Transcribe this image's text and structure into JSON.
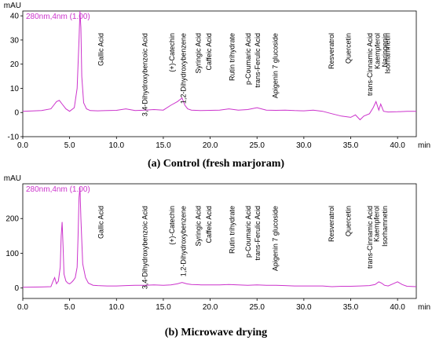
{
  "chart_data": [
    {
      "type": "line",
      "caption": "(a) Control (fresh marjoram)",
      "ylabel": "mAU",
      "xlabel": "min",
      "method_label": "280nm,4nm (1.00)",
      "xlim": [
        0,
        42
      ],
      "ylim": [
        -10,
        42
      ],
      "xticks": [
        0.0,
        5.0,
        10.0,
        15.0,
        20.0,
        25.0,
        30.0,
        35.0,
        40.0
      ],
      "yticks": [
        -10,
        0,
        10,
        20,
        30,
        40
      ],
      "trace_color": "#cc33cc",
      "series": [
        {
          "x": [
            0,
            2.0,
            3.0,
            3.3,
            3.6,
            3.9,
            4.2,
            4.6,
            5.0,
            5.5,
            5.8,
            6.0,
            6.1,
            6.2,
            6.3,
            6.5,
            6.8,
            7.2,
            8.0,
            9.0,
            10.0,
            11.0,
            12.0,
            13.0,
            14.0,
            15.0,
            15.8,
            16.5,
            17.0,
            17.3,
            17.6,
            18.0,
            19.0,
            20.0,
            21.0,
            22.0,
            23.0,
            24.0,
            25.0,
            26.0,
            27.0,
            28.0,
            29.0,
            30.0,
            31.0,
            32.0,
            33.0,
            34.0,
            35.0,
            35.5,
            36.0,
            36.4,
            37.0,
            37.4,
            37.7,
            38.0,
            38.2,
            38.5,
            39.0,
            40.0,
            41.0,
            42.0
          ],
          "y": [
            0.5,
            0.8,
            1.5,
            3.0,
            4.5,
            5.0,
            3.5,
            1.5,
            0.5,
            2.0,
            10.0,
            30.0,
            42.0,
            35.0,
            15.0,
            4.0,
            1.5,
            0.8,
            0.7,
            0.8,
            0.9,
            1.5,
            0.8,
            1.0,
            1.2,
            1.0,
            3.0,
            4.5,
            6.0,
            3.0,
            1.5,
            1.0,
            0.8,
            0.9,
            1.0,
            1.5,
            1.0,
            1.2,
            2.0,
            1.0,
            0.9,
            1.0,
            0.8,
            0.7,
            1.0,
            0.5,
            -0.5,
            -1.5,
            -2.0,
            -1.0,
            -3.0,
            -1.5,
            -0.5,
            2.0,
            4.5,
            1.0,
            3.5,
            0.5,
            0.2,
            0.3,
            0.5,
            0.5
          ]
        }
      ],
      "peak_labels": [
        {
          "text": "Gallic Acid",
          "x": 8.6
        },
        {
          "text": "3,4-Dihydroxybenzoic Acid",
          "x": 13.3
        },
        {
          "text": "(+)-Catechin",
          "x": 16.2
        },
        {
          "text": "1,2-Dihydroxybenzene",
          "x": 17.4
        },
        {
          "text": "Syringic Acid",
          "x": 19.0
        },
        {
          "text": "Caffeic Acid",
          "x": 20.1
        },
        {
          "text": "Rutin trihydrate",
          "x": 22.6
        },
        {
          "text": "p-Coumaric Acid",
          "x": 24.3
        },
        {
          "text": "trans-Ferulic Acid",
          "x": 25.3
        },
        {
          "text": "Apigenin 7 glucoside",
          "x": 27.2
        },
        {
          "text": "Resveratrol",
          "x": 33.2
        },
        {
          "text": "Quercetin",
          "x": 35.0
        },
        {
          "text": "trans-Cinnamic Acid",
          "x": 37.3
        },
        {
          "text": "Kaempferol",
          "x": 38.1
        },
        {
          "text": "Naringenin",
          "x": 38.9
        },
        {
          "text": "Isorhamnetin",
          "x": 39.2
        }
      ]
    },
    {
      "type": "line",
      "caption": "(b) Microwave drying",
      "ylabel": "mAU",
      "xlabel": "min",
      "method_label": "280nm,4nm (1.00)",
      "xlim": [
        0,
        42
      ],
      "ylim": [
        -30,
        300
      ],
      "xticks": [
        0.0,
        5.0,
        10.0,
        15.0,
        20.0,
        25.0,
        30.0,
        35.0,
        40.0
      ],
      "yticks": [
        0,
        100,
        200
      ],
      "trace_color": "#cc33cc",
      "series": [
        {
          "x": [
            0,
            2.0,
            3.0,
            3.2,
            3.4,
            3.6,
            3.8,
            4.0,
            4.1,
            4.2,
            4.3,
            4.4,
            4.6,
            4.8,
            5.0,
            5.2,
            5.4,
            5.6,
            5.8,
            5.9,
            6.0,
            6.1,
            6.2,
            6.4,
            6.7,
            7.0,
            7.5,
            8.0,
            9.0,
            10.0,
            11.0,
            12.0,
            13.0,
            14.0,
            15.0,
            15.8,
            16.5,
            17.0,
            17.5,
            18.0,
            19.0,
            20.0,
            21.0,
            22.0,
            23.0,
            24.0,
            25.0,
            26.0,
            27.0,
            28.0,
            29.0,
            30.0,
            31.0,
            32.0,
            33.0,
            34.0,
            35.0,
            36.0,
            37.0,
            37.6,
            38.0,
            38.3,
            38.6,
            39.0,
            39.5,
            40.0,
            40.5,
            41.0,
            42.0
          ],
          "y": [
            2,
            3,
            4,
            18,
            30,
            12,
            20,
            60,
            150,
            190,
            120,
            40,
            20,
            14,
            12,
            16,
            22,
            30,
            60,
            150,
            260,
            290,
            200,
            70,
            30,
            14,
            8,
            7,
            6,
            6,
            7,
            8,
            8,
            9,
            8,
            9,
            12,
            16,
            12,
            10,
            9,
            9,
            9,
            10,
            9,
            8,
            9,
            8,
            8,
            7,
            6,
            6,
            6,
            6,
            4,
            5,
            5,
            6,
            7,
            10,
            18,
            14,
            8,
            6,
            12,
            18,
            10,
            5,
            4
          ]
        }
      ],
      "peak_labels": [
        {
          "text": "Gallic Acid",
          "x": 8.6
        },
        {
          "text": "3,4-Dihydroxybenzoic Acid",
          "x": 13.3
        },
        {
          "text": "(+)-Catechin",
          "x": 16.2
        },
        {
          "text": "1,2-Dihydroxybenzene",
          "x": 17.4
        },
        {
          "text": "Syringic Acid",
          "x": 19.0
        },
        {
          "text": "Caffeic Acid",
          "x": 20.1
        },
        {
          "text": "Rutin trihydrate",
          "x": 22.6
        },
        {
          "text": "p-Coumaric Acid",
          "x": 24.3
        },
        {
          "text": "trans-Ferulic Acid",
          "x": 25.3
        },
        {
          "text": "Apigenin 7 glucoside",
          "x": 27.2
        },
        {
          "text": "Resveratrol",
          "x": 33.2
        },
        {
          "text": "Quercetin",
          "x": 35.0
        },
        {
          "text": "trans-Cinnamic Acid",
          "x": 37.3
        },
        {
          "text": "Kaempferol",
          "x": 38.0
        },
        {
          "text": "Isorhamnetin",
          "x": 38.9
        }
      ]
    }
  ]
}
